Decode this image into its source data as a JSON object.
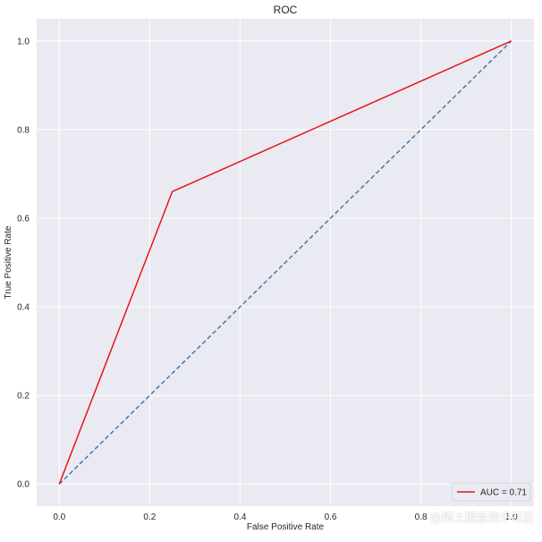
{
  "chart_data": {
    "type": "line",
    "title": "ROC",
    "xlabel": "False Positive Rate",
    "ylabel": "True Positive Rate",
    "xlim": [
      -0.05,
      1.05
    ],
    "ylim": [
      -0.05,
      1.05
    ],
    "xticks": [
      0.0,
      0.2,
      0.4,
      0.6,
      0.8,
      1.0
    ],
    "yticks": [
      0.0,
      0.2,
      0.4,
      0.6,
      0.8,
      1.0
    ],
    "xtick_labels": [
      "0.0",
      "0.2",
      "0.4",
      "0.6",
      "0.8",
      "1.0"
    ],
    "ytick_labels": [
      "0.0",
      "0.2",
      "0.4",
      "0.6",
      "0.8",
      "1.0"
    ],
    "grid": true,
    "legend_position": "lower-right",
    "series": [
      {
        "name": "AUC = 0.71",
        "x": [
          0.0,
          0.25,
          1.0
        ],
        "y": [
          0.0,
          0.66,
          1.0
        ],
        "color": "#e8141b",
        "style": "solid"
      },
      {
        "x": [
          0.0,
          1.0
        ],
        "y": [
          0.0,
          1.0
        ],
        "color": "#3f7bad",
        "style": "dashed"
      }
    ]
  },
  "colors": {
    "plot_background": "#eaeaf2",
    "grid": "#ffffff",
    "text": "#262626"
  },
  "watermark": "@稀土掘金技术社区"
}
